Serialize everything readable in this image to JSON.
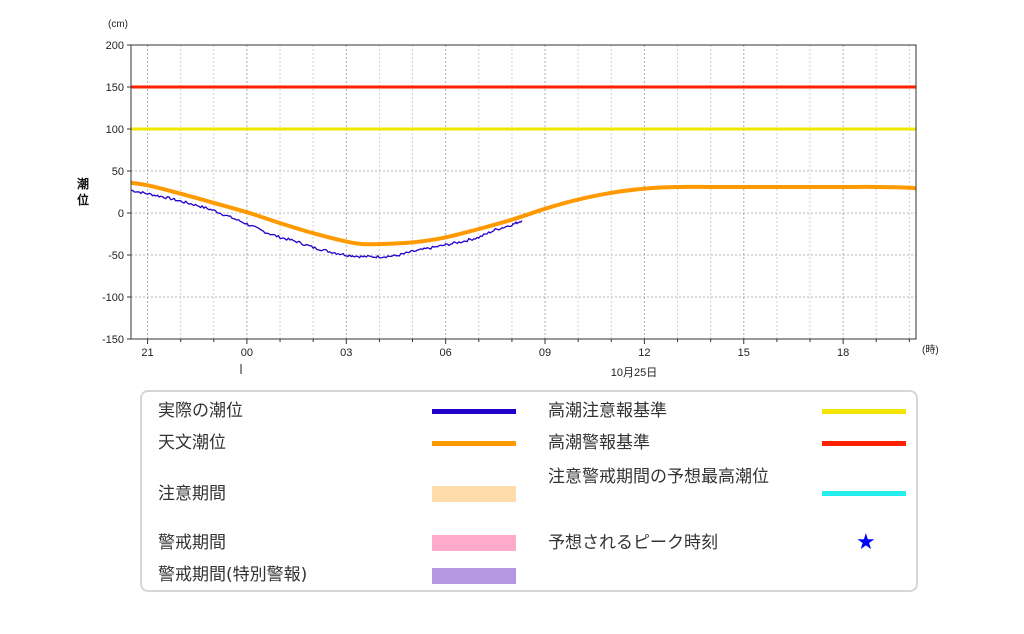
{
  "chart_data": {
    "type": "line",
    "unit_label": "(cm)",
    "ylabel": "潮位",
    "xunit": "(時)",
    "date_label": "10月25日",
    "ylim": [
      -150,
      200
    ],
    "y_ticks": [
      "200",
      "150",
      "100",
      "50",
      "0",
      "-50",
      "-100",
      "-150"
    ],
    "x_ticks": [
      "21",
      "00",
      "03",
      "06",
      "09",
      "12",
      "15",
      "18"
    ],
    "xlim_hours": [
      -3.5,
      20.2
    ],
    "grid": true,
    "reference_lines": [
      {
        "name": "高潮警報基準",
        "value": 150,
        "color": "#ff2200"
      },
      {
        "name": "高潮注意報基準",
        "value": 100,
        "color": "#f2e600"
      }
    ],
    "series": [
      {
        "name": "天文潮位",
        "color": "#ff9900",
        "x": [
          -3.5,
          -3,
          -2,
          -1,
          0,
          1,
          2,
          3,
          3.5,
          4,
          5,
          6,
          7,
          8,
          9,
          10,
          11,
          12,
          13,
          14,
          15,
          16,
          17,
          18,
          19,
          20,
          20.2
        ],
        "y": [
          36,
          33,
          23,
          12,
          1,
          -12,
          -24,
          -34,
          -37,
          -37,
          -35,
          -29,
          -19,
          -8,
          5,
          16,
          24,
          29,
          31,
          31,
          31,
          31,
          31,
          31,
          31,
          30,
          29
        ]
      },
      {
        "name": "実際の潮位",
        "color": "#2200cc",
        "x": [
          -3.5,
          -3,
          -2.5,
          -2,
          -1.5,
          -1,
          -0.5,
          0,
          0.5,
          1,
          1.5,
          2,
          2.5,
          3,
          3.5,
          4,
          4.5,
          5,
          5.5,
          6,
          6.5,
          7,
          7.5,
          8,
          8.3
        ],
        "y": [
          27,
          23,
          19,
          14,
          9,
          3,
          -5,
          -13,
          -22,
          -29,
          -34,
          -41,
          -46,
          -50,
          -52,
          -52,
          -51,
          -46,
          -42,
          -38,
          -34,
          -29,
          -20,
          -14,
          -9
        ]
      }
    ]
  },
  "legend": {
    "items": [
      {
        "label": "実際の潮位",
        "color": "#2200cc",
        "kind": "line"
      },
      {
        "label": "天文潮位",
        "color": "#ff9900",
        "kind": "line"
      },
      {
        "label": "注意期間",
        "color": "#ffdcaa",
        "kind": "box"
      },
      {
        "label": "警戒期間",
        "color": "#ffaac8",
        "kind": "box"
      },
      {
        "label": "警戒期間(特別警報)",
        "color": "#b496e1",
        "kind": "box"
      },
      {
        "label": "高潮注意報基準",
        "color": "#f2e600",
        "kind": "line"
      },
      {
        "label": "高潮警報基準",
        "color": "#ff2200",
        "kind": "line"
      },
      {
        "label": "注意警戒期間の予想最高潮位",
        "color": "#22eeee",
        "kind": "line"
      },
      {
        "label": "予想されるピーク時刻",
        "color": "#0000ff",
        "kind": "star"
      }
    ]
  }
}
